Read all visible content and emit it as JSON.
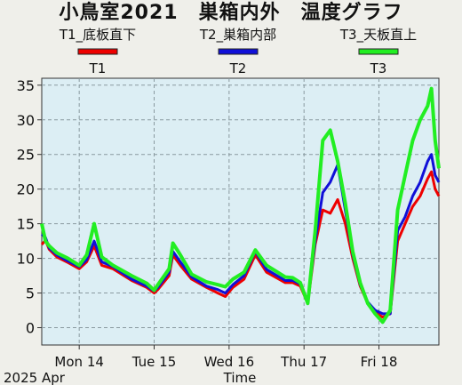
{
  "window": {
    "title": "小鳥室2021　巣箱内外　温度グラフ"
  },
  "chart_data": {
    "type": "line",
    "title": "小鳥室2021　巣箱内外　温度グラフ",
    "xlabel": "Time",
    "ylabel": "",
    "year_month_label": "2025 Apr",
    "ylim": [
      -2.5,
      36
    ],
    "yticks": [
      0,
      5,
      10,
      15,
      20,
      25,
      30,
      35
    ],
    "x_range_days": [
      13.5,
      18.8
    ],
    "x_ticks": [
      {
        "day": 14,
        "label": "Mon 14"
      },
      {
        "day": 15,
        "label": "Tue 15"
      },
      {
        "day": 16,
        "label": "Wed 16"
      },
      {
        "day": 17,
        "label": "Thu 17"
      },
      {
        "day": 18,
        "label": "Fri 18"
      }
    ],
    "grid": true,
    "legend_placement": "top",
    "series": [
      {
        "name": "T1_底板直下",
        "short": "T1",
        "color": "#ee0000",
        "x": [
          13.5,
          13.55,
          13.6,
          13.7,
          13.85,
          14.0,
          14.1,
          14.2,
          14.3,
          14.45,
          14.7,
          14.9,
          15.0,
          15.05,
          15.2,
          15.25,
          15.35,
          15.5,
          15.7,
          15.85,
          15.95,
          16.05,
          16.2,
          16.35,
          16.5,
          16.75,
          16.85,
          16.95,
          17.05,
          17.15,
          17.25,
          17.35,
          17.45,
          17.55,
          17.65,
          17.75,
          17.85,
          17.95,
          18.05,
          18.15,
          18.25,
          18.35,
          18.45,
          18.55,
          18.65,
          18.7,
          18.75,
          18.8
        ],
        "y": [
          12.0,
          12.6,
          11.3,
          10.2,
          9.4,
          8.5,
          9.5,
          11.8,
          9.0,
          8.5,
          6.8,
          5.8,
          5.0,
          5.5,
          7.5,
          10.5,
          9.0,
          7.0,
          5.8,
          5.0,
          4.5,
          5.8,
          7.0,
          10.5,
          8.0,
          6.5,
          6.5,
          6.0,
          3.5,
          12.0,
          17.0,
          16.5,
          18.5,
          15.0,
          10.0,
          6.0,
          3.5,
          2.2,
          1.5,
          2.0,
          12.5,
          15.0,
          17.5,
          19.0,
          21.5,
          22.5,
          20.0,
          19.0
        ]
      },
      {
        "name": "T2_巣箱内部",
        "short": "T2",
        "color": "#1010d8",
        "x": [
          13.5,
          13.55,
          13.6,
          13.7,
          13.85,
          14.0,
          14.1,
          14.2,
          14.3,
          14.45,
          14.7,
          14.9,
          15.0,
          15.05,
          15.2,
          15.25,
          15.35,
          15.5,
          15.7,
          15.85,
          15.95,
          16.05,
          16.2,
          16.35,
          16.5,
          16.75,
          16.85,
          16.95,
          17.05,
          17.15,
          17.25,
          17.35,
          17.45,
          17.55,
          17.65,
          17.75,
          17.85,
          17.95,
          18.05,
          18.15,
          18.25,
          18.35,
          18.45,
          18.55,
          18.65,
          18.7,
          18.75,
          18.8
        ],
        "y": [
          13.5,
          13.0,
          11.5,
          10.5,
          9.6,
          8.8,
          9.8,
          12.5,
          9.5,
          8.8,
          7.0,
          6.0,
          5.3,
          5.8,
          8.0,
          11.0,
          9.5,
          7.3,
          6.0,
          5.5,
          5.0,
          6.2,
          7.5,
          11.0,
          8.4,
          6.8,
          6.8,
          6.3,
          3.8,
          12.5,
          19.5,
          21.0,
          23.5,
          17.0,
          10.5,
          6.2,
          3.7,
          2.5,
          2.0,
          2.0,
          14.0,
          16.0,
          19.0,
          21.0,
          24.0,
          25.0,
          22.0,
          21.0
        ]
      },
      {
        "name": "T3_天板直上",
        "short": "T3",
        "color": "#22ee22",
        "x": [
          13.5,
          13.55,
          13.6,
          13.7,
          13.85,
          14.0,
          14.1,
          14.2,
          14.3,
          14.45,
          14.7,
          14.9,
          15.0,
          15.05,
          15.2,
          15.25,
          15.35,
          15.5,
          15.7,
          15.85,
          15.95,
          16.05,
          16.2,
          16.35,
          16.5,
          16.75,
          16.85,
          16.95,
          17.05,
          17.15,
          17.25,
          17.35,
          17.45,
          17.55,
          17.65,
          17.75,
          17.85,
          17.95,
          18.05,
          18.15,
          18.25,
          18.35,
          18.45,
          18.55,
          18.65,
          18.7,
          18.75,
          18.8
        ],
        "y": [
          15.0,
          12.5,
          11.8,
          10.8,
          10.0,
          9.0,
          10.5,
          15.0,
          10.2,
          9.0,
          7.5,
          6.4,
          5.4,
          6.2,
          8.5,
          12.2,
          10.5,
          7.7,
          6.6,
          6.2,
          5.9,
          7.0,
          8.0,
          11.2,
          9.0,
          7.3,
          7.2,
          6.5,
          3.5,
          14.0,
          27.0,
          28.5,
          24.0,
          18.0,
          11.0,
          6.5,
          3.5,
          2.0,
          0.8,
          2.5,
          17.0,
          22.0,
          27.0,
          30.0,
          32.0,
          34.5,
          27.0,
          23.0
        ]
      }
    ]
  }
}
